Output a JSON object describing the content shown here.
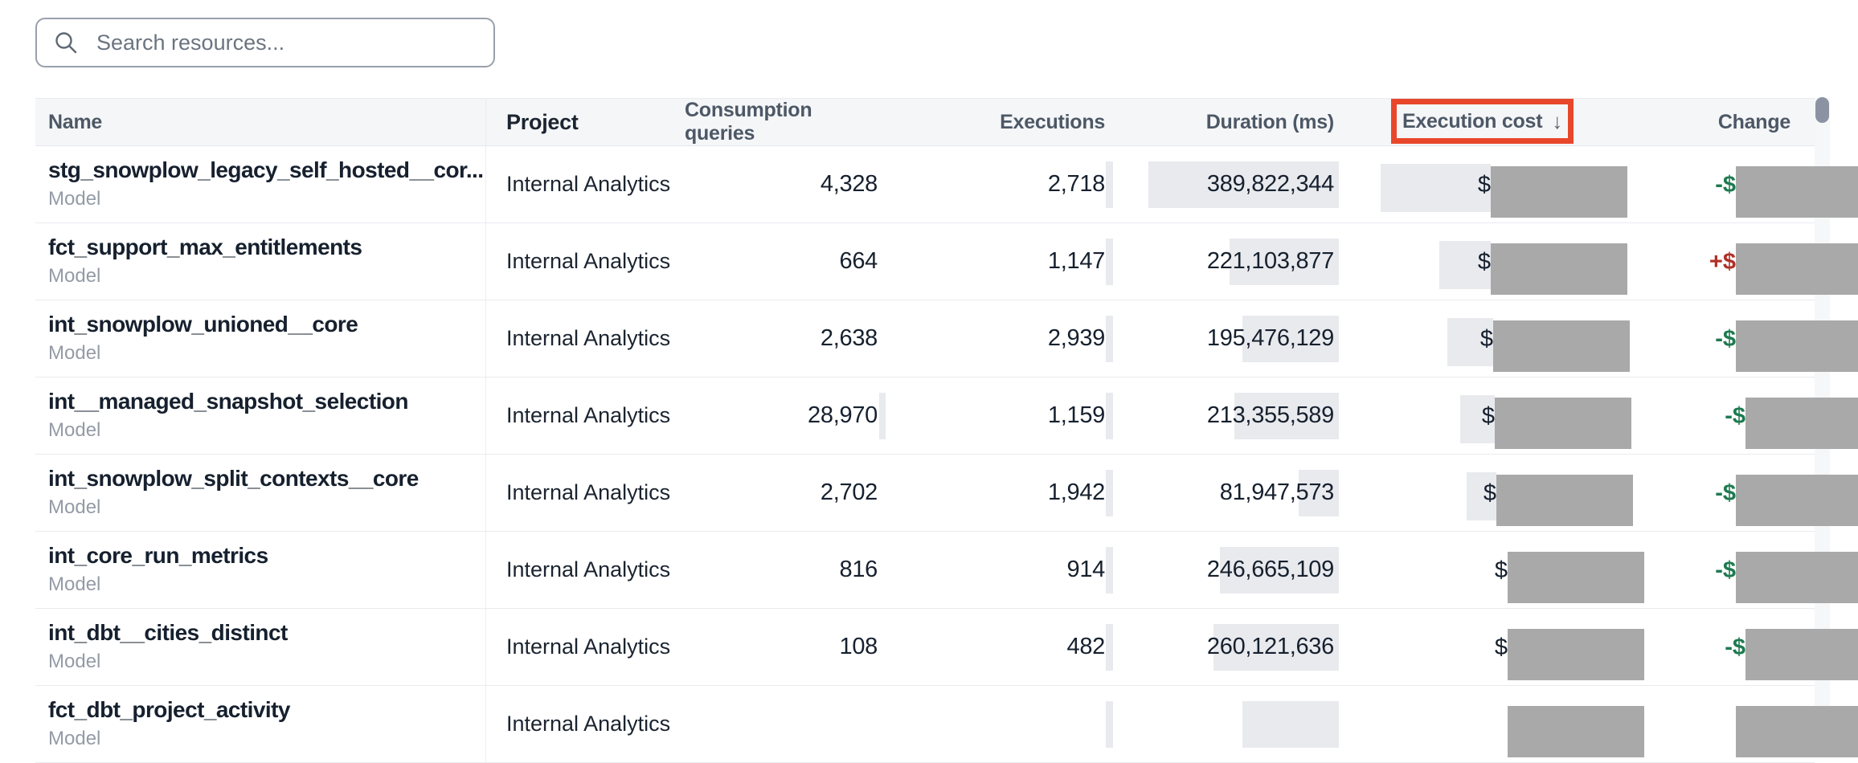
{
  "search": {
    "placeholder": "Search resources..."
  },
  "table": {
    "columns": [
      {
        "label": "Name"
      },
      {
        "label": "Project"
      },
      {
        "label": "Consumption queries"
      },
      {
        "label": "Executions"
      },
      {
        "label": "Duration (ms)"
      },
      {
        "label": "Execution cost",
        "sorted": "desc",
        "annotated": true
      },
      {
        "label": "Change"
      }
    ],
    "sort_arrow": "↓",
    "rows": [
      {
        "name": "stg_snowplow_legacy_self_hosted__cor...",
        "type": "Model",
        "project": "Internal Analytics",
        "queries": "4,328",
        "executions": "2,718",
        "duration": "389,822,344",
        "cost_prefix": "$",
        "cost_redacted": true,
        "change_sign": "-$",
        "change_dir": "down",
        "change_redacted": true,
        "queries_bar": 0,
        "exec_bar": 9,
        "duration_bar": 237,
        "cost_bar": 137,
        "cost_dx": 0,
        "change_dx": 0
      },
      {
        "name": "fct_support_max_entitlements",
        "type": "Model",
        "project": "Internal Analytics",
        "queries": "664",
        "executions": "1,147",
        "duration": "221,103,877",
        "cost_prefix": "$",
        "cost_redacted": true,
        "change_sign": "+$",
        "change_dir": "up",
        "change_redacted": true,
        "queries_bar": 0,
        "exec_bar": 9,
        "duration_bar": 136,
        "cost_bar": 64,
        "cost_dx": 0,
        "change_dx": 0
      },
      {
        "name": "int_snowplow_unioned__core",
        "type": "Model",
        "project": "Internal Analytics",
        "queries": "2,638",
        "executions": "2,939",
        "duration": "195,476,129",
        "cost_prefix": "$",
        "cost_redacted": true,
        "change_sign": "-$",
        "change_dir": "down",
        "change_redacted": true,
        "queries_bar": 0,
        "exec_bar": 9,
        "duration_bar": 120,
        "cost_bar": 57,
        "cost_dx": 3,
        "change_dx": 0
      },
      {
        "name": "int__managed_snapshot_selection",
        "type": "Model",
        "project": "Internal Analytics",
        "queries": "28,970",
        "executions": "1,159",
        "duration": "213,355,589",
        "cost_prefix": "$",
        "cost_redacted": true,
        "change_sign": "-$",
        "change_dir": "down",
        "change_redacted": true,
        "queries_bar": 8,
        "exec_bar": 9,
        "duration_bar": 130,
        "cost_bar": 43,
        "cost_dx": 5,
        "change_dx": 12
      },
      {
        "name": "int_snowplow_split_contexts__core",
        "type": "Model",
        "project": "Internal Analytics",
        "queries": "2,702",
        "executions": "1,942",
        "duration": "81,947,573",
        "cost_prefix": "$",
        "cost_redacted": true,
        "change_sign": "-$",
        "change_dir": "down",
        "change_redacted": true,
        "queries_bar": 0,
        "exec_bar": 9,
        "duration_bar": 50,
        "cost_bar": 37,
        "cost_dx": 7,
        "change_dx": 0
      },
      {
        "name": "int_core_run_metrics",
        "type": "Model",
        "project": "Internal Analytics",
        "queries": "816",
        "executions": "914",
        "duration": "246,665,109",
        "cost_prefix": "$",
        "cost_redacted": true,
        "change_sign": "-$",
        "change_dir": "down",
        "change_redacted": true,
        "queries_bar": 0,
        "exec_bar": 9,
        "duration_bar": 148,
        "cost_bar": 0,
        "cost_dx": 21,
        "change_dx": 0
      },
      {
        "name": "int_dbt__cities_distinct",
        "type": "Model",
        "project": "Internal Analytics",
        "queries": "108",
        "executions": "482",
        "duration": "260,121,636",
        "cost_prefix": "$",
        "cost_redacted": true,
        "change_sign": "-$",
        "change_dir": "down",
        "change_redacted": true,
        "queries_bar": 0,
        "exec_bar": 9,
        "duration_bar": 156,
        "cost_bar": 0,
        "cost_dx": 21,
        "change_dx": 12
      },
      {
        "name": "fct_dbt_project_activity",
        "type": "Model",
        "project": "Internal Analytics",
        "queries": "",
        "executions": "",
        "duration": "",
        "cost_prefix": "",
        "cost_redacted": true,
        "change_sign": "",
        "change_dir": "down",
        "change_redacted": true,
        "queries_bar": 0,
        "exec_bar": 9,
        "duration_bar": 120,
        "cost_bar": 0,
        "cost_dx": 21,
        "change_dx": 0
      }
    ]
  },
  "colors": {
    "annotation_red": "#e8472b",
    "change_down_green": "#1e7a50",
    "change_up_red": "#b03026",
    "redaction_gray": "#a9a9a9",
    "bar_gray": "#e9eaee",
    "header_bg": "#f5f6f8",
    "scrollbar_thumb": "#8b93a3"
  }
}
